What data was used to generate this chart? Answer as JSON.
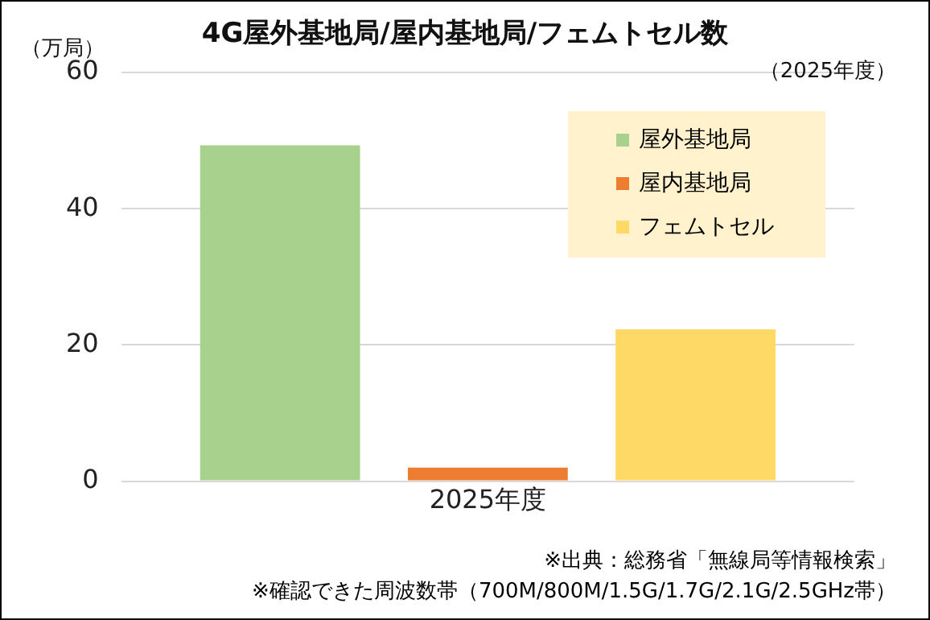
{
  "chart_data": {
    "type": "bar",
    "title": "4G屋外基地局/屋内基地局/フェムトセル数",
    "subtitle": "（2025年度）",
    "ylabel": "（万局）",
    "categories": [
      "2025年度"
    ],
    "series": [
      {
        "name": "屋外基地局",
        "color": "#a9d18e",
        "values": [
          49.3
        ]
      },
      {
        "name": "屋内基地局",
        "color": "#ed7d31",
        "values": [
          2.0
        ]
      },
      {
        "name": "フェムトセル",
        "color": "#ffd966",
        "values": [
          22.3
        ]
      }
    ],
    "ylim": [
      0,
      60
    ],
    "yticks": [
      0,
      20,
      40,
      60
    ],
    "grid": "y",
    "legend": "top right",
    "annotations": [
      "※出典：総務省「無線局等情報検索」",
      "※確認できた周波数帯（700M/800M/1.5G/1.7G/2.1G/2.5GHz帯）"
    ]
  }
}
